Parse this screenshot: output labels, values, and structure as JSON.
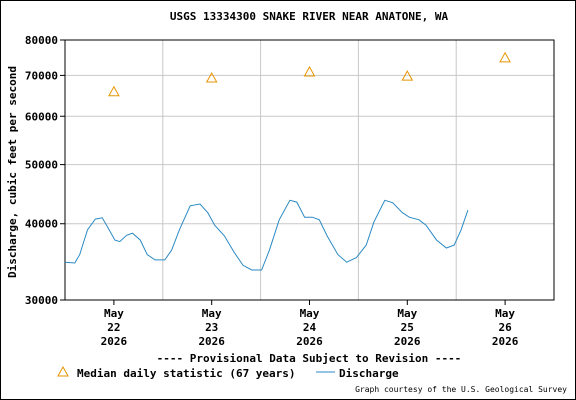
{
  "chart_data": {
    "type": "line",
    "title": "USGS 13334300 SNAKE RIVER NEAR ANATONE, WA",
    "y_label": "Discharge, cubic feet per second",
    "annotation": "---- Provisional Data Subject to Revision ----",
    "annotation_color": "#dd0000",
    "credit": "Graph courtesy of the U.S. Geological Survey",
    "ylog": true,
    "ylim": [
      30000,
      80000
    ],
    "yticks": [
      30000,
      40000,
      50000,
      60000,
      70000,
      80000
    ],
    "xlim": [
      22,
      27
    ],
    "xticks": [
      {
        "value": 22.5,
        "label": [
          "May",
          "22",
          "2026"
        ]
      },
      {
        "value": 23.5,
        "label": [
          "May",
          "23",
          "2026"
        ]
      },
      {
        "value": 24.5,
        "label": [
          "May",
          "24",
          "2026"
        ]
      },
      {
        "value": 25.5,
        "label": [
          "May",
          "25",
          "2026"
        ]
      },
      {
        "value": 26.5,
        "label": [
          "May",
          "26",
          "2026"
        ]
      }
    ],
    "xgrid": [
      23,
      24,
      25,
      26
    ],
    "grid": true,
    "series": [
      {
        "name": "Median daily statistic (67 years)",
        "color": "#e69500",
        "marker": "triangle",
        "x": [
          22.5,
          23.5,
          24.5,
          25.5,
          26.5
        ],
        "values": [
          65800,
          69300,
          70900,
          69800,
          74800
        ]
      },
      {
        "name": "Discharge",
        "color": "#2a8ac4",
        "marker": "line",
        "x": [
          22.0,
          22.1,
          22.15,
          22.23,
          22.31,
          22.38,
          22.44,
          22.51,
          22.56,
          22.63,
          22.69,
          22.77,
          22.84,
          22.92,
          23.02,
          23.09,
          23.17,
          23.28,
          23.38,
          23.46,
          23.53,
          23.63,
          23.73,
          23.82,
          23.91,
          24.01,
          24.09,
          24.19,
          24.3,
          24.37,
          24.45,
          24.53,
          24.6,
          24.68,
          24.79,
          24.88,
          24.98,
          25.08,
          25.16,
          25.27,
          25.35,
          25.45,
          25.52,
          25.62,
          25.69,
          25.8,
          25.9,
          25.98,
          26.05,
          26.12
        ],
        "values": [
          34600,
          34500,
          35600,
          39100,
          40700,
          40900,
          39400,
          37600,
          37400,
          38300,
          38600,
          37600,
          35600,
          34900,
          34900,
          36200,
          39100,
          42800,
          43100,
          41700,
          39800,
          38200,
          35900,
          34200,
          33600,
          33600,
          36200,
          40600,
          43700,
          43400,
          41000,
          41000,
          40600,
          38200,
          35600,
          34600,
          35200,
          36900,
          40300,
          43700,
          43300,
          41700,
          41000,
          40600,
          39800,
          37600,
          36500,
          36900,
          39100,
          42100
        ]
      }
    ]
  }
}
